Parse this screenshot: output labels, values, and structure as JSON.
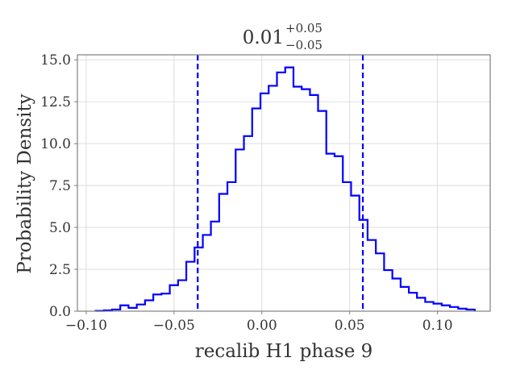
{
  "chart_data": {
    "type": "step-histogram",
    "title": {
      "value": "0.01",
      "upper": "+0.05",
      "lower": "−0.05"
    },
    "xlabel": "recalib H1 phase 9",
    "ylabel": "Probability Density",
    "xlim": [
      -0.105,
      0.13
    ],
    "ylim": [
      0,
      15.3
    ],
    "xticks": [
      -0.1,
      -0.05,
      0.0,
      0.05,
      0.1
    ],
    "xtick_labels": [
      "−0.10",
      "−0.05",
      "0.00",
      "0.05",
      "0.10"
    ],
    "yticks": [
      0,
      2.5,
      5,
      7.5,
      10,
      12.5,
      15
    ],
    "ytick_labels": [
      "0.0",
      "2.5",
      "5.0",
      "7.5",
      "10.0",
      "12.5",
      "15.0"
    ],
    "grid": true,
    "color": "#0000ff",
    "bin_edges": [
      -0.0946,
      -0.0899,
      -0.0853,
      -0.0806,
      -0.0759,
      -0.0712,
      -0.0665,
      -0.0618,
      -0.0571,
      -0.0524,
      -0.0477,
      -0.043,
      -0.0383,
      -0.0336,
      -0.029,
      -0.0243,
      -0.0196,
      -0.0149,
      -0.0102,
      -0.0055,
      -0.0008,
      0.0039,
      0.0086,
      0.0133,
      0.018,
      0.0227,
      0.0274,
      0.032,
      0.0367,
      0.0414,
      0.0461,
      0.0508,
      0.0555,
      0.0602,
      0.0649,
      0.0696,
      0.0743,
      0.079,
      0.0837,
      0.0883,
      0.093,
      0.0977,
      0.1024,
      0.1071,
      0.1118,
      0.1165,
      0.1212
    ],
    "densities": [
      0.02,
      0.05,
      0.1,
      0.35,
      0.2,
      0.4,
      0.65,
      1.0,
      1.05,
      1.55,
      1.85,
      2.95,
      3.8,
      4.55,
      5.35,
      7.0,
      7.7,
      9.65,
      10.45,
      12.1,
      13.0,
      13.45,
      14.25,
      14.55,
      13.4,
      13.25,
      12.9,
      11.95,
      9.4,
      9.25,
      7.7,
      6.9,
      5.45,
      4.25,
      3.45,
      2.45,
      1.95,
      1.45,
      1.1,
      0.8,
      0.55,
      0.45,
      0.35,
      0.25,
      0.15,
      0.1
    ],
    "quantile_lines": [
      -0.0365,
      0.0575
    ]
  }
}
